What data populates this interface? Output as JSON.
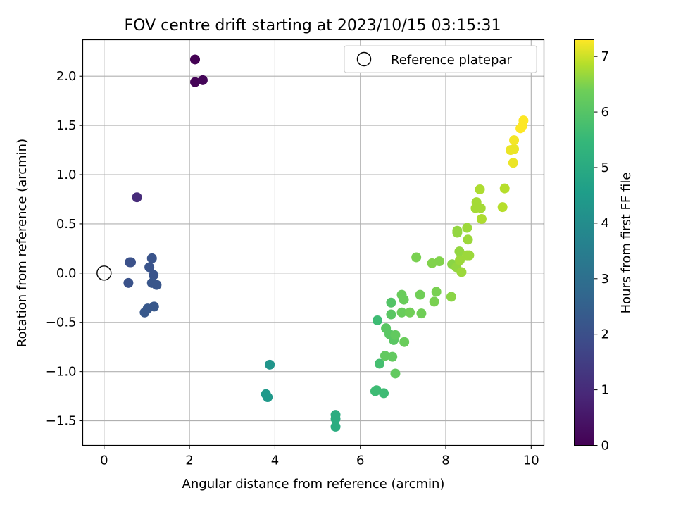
{
  "chart_data": {
    "type": "scatter",
    "title": "FOV centre drift starting at 2023/10/15 03:15:31",
    "xlabel": "Angular distance from reference (arcmin)",
    "ylabel": "Rotation from reference (arcmin)",
    "xlim": [
      -0.5,
      10.3
    ],
    "ylim": [
      -1.75,
      2.37
    ],
    "xticks": [
      0,
      2,
      4,
      6,
      8,
      10
    ],
    "xtick_labels": [
      "0",
      "2",
      "4",
      "6",
      "8",
      "10"
    ],
    "yticks": [
      -1.5,
      -1.0,
      -0.5,
      0.0,
      0.5,
      1.0,
      1.5,
      2.0
    ],
    "ytick_labels": [
      "−1.5",
      "−1.0",
      "−0.5",
      "0.0",
      "0.5",
      "1.0",
      "1.5",
      "2.0"
    ],
    "grid": true,
    "legend": {
      "position": "top-right",
      "entries": [
        "Reference platepar"
      ]
    },
    "reference_point": {
      "x": 0,
      "y": 0
    },
    "colorbar": {
      "label": "Hours from first FF file",
      "range": [
        0,
        7.3
      ],
      "ticks": [
        0,
        1,
        2,
        3,
        4,
        5,
        6,
        7
      ],
      "tick_labels": [
        "0",
        "1",
        "2",
        "3",
        "4",
        "5",
        "6",
        "7"
      ],
      "colormap": "viridis"
    },
    "points": [
      {
        "x": 2.13,
        "y": 2.17,
        "h": 0.0
      },
      {
        "x": 2.13,
        "y": 1.94,
        "h": 0.05
      },
      {
        "x": 2.31,
        "y": 1.96,
        "h": 0.1
      },
      {
        "x": 0.77,
        "y": 0.77,
        "h": 0.9
      },
      {
        "x": 0.6,
        "y": 0.11,
        "h": 1.8
      },
      {
        "x": 0.63,
        "y": 0.11,
        "h": 1.8
      },
      {
        "x": 0.57,
        "y": -0.1,
        "h": 1.85
      },
      {
        "x": 1.12,
        "y": 0.15,
        "h": 1.9
      },
      {
        "x": 1.06,
        "y": 0.06,
        "h": 1.9
      },
      {
        "x": 1.16,
        "y": -0.02,
        "h": 1.9
      },
      {
        "x": 1.12,
        "y": -0.1,
        "h": 1.95
      },
      {
        "x": 1.23,
        "y": -0.12,
        "h": 1.95
      },
      {
        "x": 1.02,
        "y": -0.36,
        "h": 2.0
      },
      {
        "x": 0.95,
        "y": -0.4,
        "h": 2.0
      },
      {
        "x": 1.17,
        "y": -0.34,
        "h": 2.0
      },
      {
        "x": 3.88,
        "y": -0.93,
        "h": 3.8
      },
      {
        "x": 3.79,
        "y": -1.23,
        "h": 3.9
      },
      {
        "x": 3.83,
        "y": -1.26,
        "h": 3.9
      },
      {
        "x": 5.42,
        "y": -1.44,
        "h": 4.5
      },
      {
        "x": 5.42,
        "y": -1.48,
        "h": 4.5
      },
      {
        "x": 5.42,
        "y": -1.56,
        "h": 4.5
      },
      {
        "x": 6.4,
        "y": -0.48,
        "h": 5.0
      },
      {
        "x": 6.35,
        "y": -1.2,
        "h": 5.0
      },
      {
        "x": 6.38,
        "y": -1.19,
        "h": 5.0
      },
      {
        "x": 6.55,
        "y": -1.22,
        "h": 5.0
      },
      {
        "x": 6.45,
        "y": -0.92,
        "h": 5.1
      },
      {
        "x": 6.72,
        "y": -0.3,
        "h": 5.3
      },
      {
        "x": 6.72,
        "y": -0.42,
        "h": 5.4
      },
      {
        "x": 6.6,
        "y": -0.56,
        "h": 5.4
      },
      {
        "x": 6.68,
        "y": -0.62,
        "h": 5.4
      },
      {
        "x": 6.78,
        "y": -0.68,
        "h": 5.4
      },
      {
        "x": 6.82,
        "y": -0.63,
        "h": 5.5
      },
      {
        "x": 6.58,
        "y": -0.84,
        "h": 5.5
      },
      {
        "x": 6.75,
        "y": -0.85,
        "h": 5.5
      },
      {
        "x": 6.82,
        "y": -1.02,
        "h": 5.5
      },
      {
        "x": 7.03,
        "y": -0.7,
        "h": 5.6
      },
      {
        "x": 6.97,
        "y": -0.22,
        "h": 5.6
      },
      {
        "x": 7.02,
        "y": -0.27,
        "h": 5.6
      },
      {
        "x": 6.97,
        "y": -0.4,
        "h": 5.6
      },
      {
        "x": 7.16,
        "y": -0.4,
        "h": 5.7
      },
      {
        "x": 7.4,
        "y": -0.22,
        "h": 5.7
      },
      {
        "x": 7.43,
        "y": -0.41,
        "h": 5.7
      },
      {
        "x": 7.31,
        "y": 0.16,
        "h": 5.8
      },
      {
        "x": 7.73,
        "y": -0.29,
        "h": 5.8
      },
      {
        "x": 7.78,
        "y": -0.19,
        "h": 5.8
      },
      {
        "x": 7.68,
        "y": 0.1,
        "h": 5.9
      },
      {
        "x": 7.85,
        "y": 0.12,
        "h": 5.9
      },
      {
        "x": 8.13,
        "y": -0.24,
        "h": 6.0
      },
      {
        "x": 8.15,
        "y": 0.09,
        "h": 6.0
      },
      {
        "x": 8.25,
        "y": 0.06,
        "h": 6.1
      },
      {
        "x": 8.27,
        "y": 0.41,
        "h": 6.1
      },
      {
        "x": 8.27,
        "y": 0.43,
        "h": 6.1
      },
      {
        "x": 8.32,
        "y": 0.22,
        "h": 6.1
      },
      {
        "x": 8.33,
        "y": 0.13,
        "h": 6.2
      },
      {
        "x": 8.37,
        "y": 0.01,
        "h": 6.2
      },
      {
        "x": 8.5,
        "y": 0.18,
        "h": 6.2
      },
      {
        "x": 8.55,
        "y": 0.18,
        "h": 6.2
      },
      {
        "x": 8.5,
        "y": 0.46,
        "h": 6.2
      },
      {
        "x": 8.52,
        "y": 0.34,
        "h": 6.2
      },
      {
        "x": 8.72,
        "y": 0.72,
        "h": 6.3
      },
      {
        "x": 8.7,
        "y": 0.66,
        "h": 6.3
      },
      {
        "x": 8.82,
        "y": 0.66,
        "h": 6.3
      },
      {
        "x": 8.8,
        "y": 0.85,
        "h": 6.4
      },
      {
        "x": 8.84,
        "y": 0.55,
        "h": 6.4
      },
      {
        "x": 9.33,
        "y": 0.67,
        "h": 6.5
      },
      {
        "x": 9.38,
        "y": 0.86,
        "h": 6.5
      },
      {
        "x": 9.52,
        "y": 1.25,
        "h": 7.1
      },
      {
        "x": 9.6,
        "y": 1.26,
        "h": 7.1
      },
      {
        "x": 9.58,
        "y": 1.12,
        "h": 7.1
      },
      {
        "x": 9.6,
        "y": 1.35,
        "h": 7.2
      },
      {
        "x": 9.75,
        "y": 1.47,
        "h": 7.3
      },
      {
        "x": 9.8,
        "y": 1.5,
        "h": 7.3
      },
      {
        "x": 9.82,
        "y": 1.55,
        "h": 7.3
      }
    ]
  }
}
